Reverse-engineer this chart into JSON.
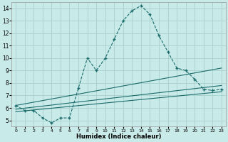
{
  "xlabel": "Humidex (Indice chaleur)",
  "bg_color": "#c8eae8",
  "grid_color": "#a8d0cc",
  "line_color": "#1a6b6b",
  "xlim": [
    -0.5,
    23.5
  ],
  "ylim": [
    4.5,
    14.5
  ],
  "xticks": [
    0,
    1,
    2,
    3,
    4,
    5,
    6,
    7,
    8,
    9,
    10,
    11,
    12,
    13,
    14,
    15,
    16,
    17,
    18,
    19,
    20,
    21,
    22,
    23
  ],
  "yticks": [
    5,
    6,
    7,
    8,
    9,
    10,
    11,
    12,
    13,
    14
  ],
  "main_x": [
    0,
    1,
    2,
    3,
    4,
    5,
    6,
    7,
    8,
    9,
    10,
    11,
    12,
    13,
    14,
    15,
    16,
    17,
    18,
    19,
    20,
    21,
    22,
    23
  ],
  "main_y": [
    6.2,
    5.8,
    5.8,
    5.2,
    4.8,
    5.2,
    5.2,
    7.6,
    10.0,
    9.0,
    10.0,
    11.5,
    13.0,
    13.8,
    14.2,
    13.5,
    11.8,
    10.5,
    9.2,
    9.0,
    8.3,
    7.5,
    7.4,
    7.5
  ],
  "line1_x": [
    0,
    23
  ],
  "line1_y": [
    6.2,
    9.2
  ],
  "line2_x": [
    0,
    23
  ],
  "line2_y": [
    5.9,
    7.8
  ],
  "line3_x": [
    0,
    23
  ],
  "line3_y": [
    5.7,
    7.3
  ]
}
